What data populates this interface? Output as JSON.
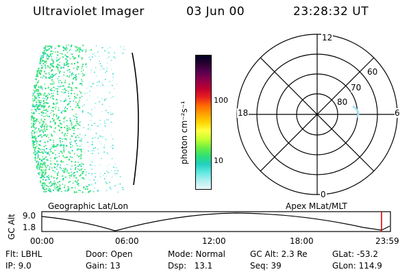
{
  "header": {
    "instrument": "Ultraviolet Imager",
    "date": "03 Jun 00",
    "time": "23:28:32 UT"
  },
  "colorbar": {
    "unit": "photon cm⁻²s⁻¹",
    "ticks": [
      "100",
      "10"
    ],
    "colors": [
      "#000020",
      "#2a0033",
      "#5a0050",
      "#90004a",
      "#c00030",
      "#e8201f",
      "#ff6a00",
      "#ffa000",
      "#ffd400",
      "#ffff40",
      "#c8ff30",
      "#70f040",
      "#30e070",
      "#20d0c0",
      "#60e8e0",
      "#b0f0f0",
      "#e8f8f8"
    ]
  },
  "polar_plot": {
    "mlt_labels": [
      "12",
      "18",
      "6",
      "0"
    ],
    "lat_labels": [
      "60",
      "70",
      "80"
    ]
  },
  "panel_labels": {
    "left": "Geographic Lat/Lon",
    "right": "Apex MLat/MLT"
  },
  "altitude_plot": {
    "ylabel": "GC Alt",
    "yticks": [
      "9.0",
      "1.8"
    ],
    "xticks": [
      "00:00",
      "06:00",
      "12:00",
      "18:00",
      "23:59"
    ]
  },
  "info": {
    "flt": "Flt: LBHL",
    "ip": "IP:  9.0",
    "door": "Door: Open",
    "gain": "Gain: 13",
    "mode": "Mode: Normal",
    "dsp": "Dsp:   13.1",
    "gcalt": "GC Alt: 2.3 Re",
    "seq": "Seq: 39",
    "glat": "GLat: -53.2",
    "glon": "GLon: 114.9"
  },
  "accent_colors": {
    "marker": "#e00000",
    "patch": "#30e070"
  }
}
